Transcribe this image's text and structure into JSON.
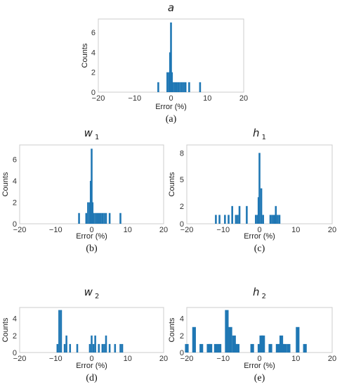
{
  "chart_data": [
    {
      "type": "bar",
      "title_main": "a",
      "title_sub": "",
      "caption": "(a)",
      "xlabel": "Error (%)",
      "ylabel": "Counts",
      "xlim": [
        -20,
        20
      ],
      "ylim": [
        0,
        7.35
      ],
      "xticks": [
        "−20",
        "−10",
        "0",
        "10",
        "20"
      ],
      "yticks": [
        "0",
        "2",
        "4",
        "6"
      ],
      "bar_color": "#1f77b4",
      "bin_width": 0.5,
      "series": [
        {
          "x": [
            -3.5,
            -1.0,
            -0.5,
            -0.25,
            0.0,
            0.25,
            0.5,
            1.0,
            1.5,
            2.0,
            2.5,
            3.0,
            3.5,
            4.0,
            5.0,
            8.0
          ],
          "values": [
            1,
            2,
            2,
            4,
            7,
            2,
            1,
            1,
            1,
            1,
            1,
            1,
            1,
            1,
            1,
            1
          ]
        }
      ]
    },
    {
      "type": "bar",
      "title_main": "w",
      "title_sub": "1",
      "caption": "(b)",
      "xlabel": "Error (%)",
      "ylabel": "Counts",
      "xlim": [
        -20,
        20
      ],
      "ylim": [
        0,
        7.35
      ],
      "xticks": [
        "−20",
        "−10",
        "0",
        "10",
        "20"
      ],
      "yticks": [
        "0",
        "2",
        "4",
        "6"
      ],
      "bar_color": "#1f77b4",
      "bin_width": 0.5,
      "series": [
        {
          "x": [
            -3.5,
            -1.5,
            -1.0,
            -0.5,
            -0.25,
            0.0,
            0.25,
            0.5,
            1.0,
            1.5,
            2.0,
            2.5,
            3.0,
            3.5,
            4.0,
            5.0,
            8.0
          ],
          "values": [
            1,
            1,
            2,
            2,
            4,
            7,
            2,
            1,
            1,
            1,
            1,
            1,
            1,
            1,
            1,
            1,
            1
          ]
        }
      ]
    },
    {
      "type": "bar",
      "title_main": "h",
      "title_sub": "1",
      "caption": "(c)",
      "xlabel": "Error (%)",
      "ylabel": "Counts",
      "xlim": [
        -20,
        20
      ],
      "ylim": [
        0,
        8.9
      ],
      "xticks": [
        "−20",
        "−10",
        "0",
        "10",
        "20"
      ],
      "yticks": [
        "0",
        "2",
        "5",
        "8"
      ],
      "bar_color": "#1f77b4",
      "bin_width": 0.5,
      "series": [
        {
          "x": [
            -12.0,
            -11.0,
            -9.5,
            -8.5,
            -7.5,
            -6.5,
            -6.0,
            -5.5,
            -3.5,
            -1.0,
            -0.5,
            -0.25,
            0.0,
            0.5,
            1.0,
            3.0,
            3.5,
            4.0,
            4.5,
            5.0,
            5.5
          ],
          "values": [
            1,
            1,
            1,
            1,
            2,
            1,
            1,
            2,
            2,
            1,
            1,
            3,
            8,
            4,
            1,
            1,
            1,
            1,
            2,
            1,
            1
          ]
        }
      ]
    },
    {
      "type": "bar",
      "title_main": "w",
      "title_sub": "2",
      "caption": "(d)",
      "xlabel": "Error (%)",
      "ylabel": "Counts",
      "xlim": [
        -20,
        20
      ],
      "ylim": [
        0,
        5.3
      ],
      "xticks": [
        "−20",
        "−10",
        "0",
        "10",
        "20"
      ],
      "yticks": [
        "0",
        "2",
        "4"
      ],
      "bar_color": "#1f77b4",
      "bin_width": 0.5,
      "series": [
        {
          "x": [
            -9.5,
            -9.0,
            -8.5,
            -7.5,
            -7.0,
            -6.0,
            -4.0,
            -0.5,
            0.0,
            0.5,
            1.0,
            2.0,
            3.0,
            3.5,
            4.0,
            5.0,
            6.5,
            8.0,
            8.5
          ],
          "values": [
            1,
            5,
            5,
            1,
            2,
            1,
            1,
            1,
            2,
            1,
            2,
            1,
            1,
            1,
            2,
            1,
            1,
            1,
            1
          ]
        }
      ]
    },
    {
      "type": "bar",
      "title_main": "h",
      "title_sub": "2",
      "caption": "(e)",
      "xlabel": "Error (%)",
      "ylabel": "Counts",
      "xlim": [
        -20,
        20
      ],
      "ylim": [
        0,
        5.3
      ],
      "xticks": [
        "−20",
        "−10",
        "0",
        "10",
        "20"
      ],
      "yticks": [
        "0",
        "2",
        "4"
      ],
      "bar_color": "#1f77b4",
      "bin_width": 1.0,
      "series": [
        {
          "x": [
            -20.0,
            -18.0,
            -16.0,
            -14.0,
            -13.5,
            -12.0,
            -11.0,
            -9.0,
            -8.0,
            -7.0,
            -6.5,
            -6.0,
            -2.0,
            0.0,
            0.5,
            1.0,
            3.0,
            5.0,
            5.5,
            6.0,
            6.5,
            7.0,
            8.0,
            10.5,
            12.5
          ],
          "values": [
            1,
            3,
            1,
            1,
            1,
            1,
            1,
            5,
            3,
            2,
            1,
            1,
            1,
            1,
            2,
            2,
            1,
            1,
            1,
            2,
            1,
            1,
            1,
            3,
            1
          ]
        }
      ]
    }
  ]
}
